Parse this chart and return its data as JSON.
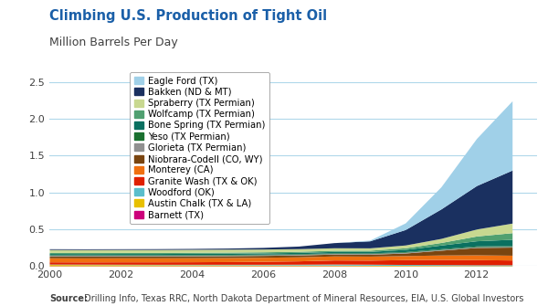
{
  "title": "Climbing U.S. Production of Tight Oil",
  "subtitle": "Million Barrels Per Day",
  "source_bold": "Source:",
  "source_rest": " Drilling Info, Texas RRC, North Dakota Department of Mineral Resources, EIA, U.S. Global Investors",
  "title_color": "#1a5fa8",
  "subtitle_color": "#404040",
  "xlim": [
    2000,
    2013.7
  ],
  "ylim": [
    0,
    2.7
  ],
  "yticks": [
    0.0,
    0.5,
    1.0,
    1.5,
    2.0,
    2.5
  ],
  "xticks": [
    2000,
    2002,
    2004,
    2006,
    2008,
    2010,
    2012
  ],
  "series": [
    {
      "name": "Barnett (TX)",
      "color": "#cc007a"
    },
    {
      "name": "Austin Chalk (TX & LA)",
      "color": "#e8c000"
    },
    {
      "name": "Woodford (OK)",
      "color": "#5abecc"
    },
    {
      "name": "Granite Wash (TX & OK)",
      "color": "#e02000"
    },
    {
      "name": "Monterey (CA)",
      "color": "#f07010"
    },
    {
      "name": "Niobrara-Codell (CO, WY)",
      "color": "#7a4510"
    },
    {
      "name": "Glorieta (TX Permian)",
      "color": "#909090"
    },
    {
      "name": "Yeso (TX Permian)",
      "color": "#1a7030"
    },
    {
      "name": "Bone Spring (TX Permian)",
      "color": "#0a7060"
    },
    {
      "name": "Wolfcamp (TX Permian)",
      "color": "#50a070"
    },
    {
      "name": "Spraberry (TX Permian)",
      "color": "#c8d890"
    },
    {
      "name": "Bakken (ND & MT)",
      "color": "#1a3060"
    },
    {
      "name": "Eagle Ford (TX)",
      "color": "#a0d0e8"
    }
  ],
  "years": [
    2000,
    2001,
    2002,
    2003,
    2004,
    2005,
    2006,
    2007,
    2008,
    2009,
    2010,
    2011,
    2012,
    2013
  ],
  "data": {
    "Barnett (TX)": [
      0.005,
      0.005,
      0.005,
      0.005,
      0.005,
      0.005,
      0.005,
      0.005,
      0.005,
      0.004,
      0.003,
      0.003,
      0.002,
      0.002
    ],
    "Austin Chalk (TX & LA)": [
      0.018,
      0.017,
      0.016,
      0.015,
      0.014,
      0.013,
      0.012,
      0.011,
      0.01,
      0.009,
      0.008,
      0.007,
      0.006,
      0.006
    ],
    "Woodford (OK)": [
      0.006,
      0.006,
      0.006,
      0.006,
      0.007,
      0.008,
      0.009,
      0.011,
      0.014,
      0.014,
      0.013,
      0.012,
      0.011,
      0.011
    ],
    "Granite Wash (TX & OK)": [
      0.03,
      0.03,
      0.032,
      0.033,
      0.034,
      0.036,
      0.04,
      0.045,
      0.055,
      0.055,
      0.065,
      0.07,
      0.07,
      0.065
    ],
    "Monterey (CA)": [
      0.055,
      0.055,
      0.055,
      0.055,
      0.055,
      0.055,
      0.055,
      0.055,
      0.055,
      0.055,
      0.055,
      0.06,
      0.065,
      0.065
    ],
    "Niobrara-Codell (CO, WY)": [
      0.025,
      0.025,
      0.025,
      0.025,
      0.025,
      0.025,
      0.025,
      0.025,
      0.025,
      0.025,
      0.035,
      0.065,
      0.1,
      0.11
    ],
    "Glorieta (TX Permian)": [
      0.01,
      0.01,
      0.01,
      0.01,
      0.01,
      0.01,
      0.01,
      0.01,
      0.01,
      0.01,
      0.01,
      0.01,
      0.01,
      0.01
    ],
    "Yeso (TX Permian)": [
      0.008,
      0.008,
      0.008,
      0.008,
      0.008,
      0.008,
      0.008,
      0.008,
      0.008,
      0.008,
      0.009,
      0.01,
      0.011,
      0.011
    ],
    "Bone Spring (TX Permian)": [
      0.015,
      0.015,
      0.015,
      0.015,
      0.016,
      0.016,
      0.016,
      0.017,
      0.018,
      0.02,
      0.03,
      0.05,
      0.07,
      0.085
    ],
    "Wolfcamp (TX Permian)": [
      0.015,
      0.015,
      0.015,
      0.015,
      0.015,
      0.015,
      0.015,
      0.015,
      0.016,
      0.017,
      0.022,
      0.035,
      0.065,
      0.09
    ],
    "Spraberry (TX Permian)": [
      0.04,
      0.04,
      0.04,
      0.04,
      0.04,
      0.04,
      0.038,
      0.036,
      0.034,
      0.032,
      0.038,
      0.055,
      0.095,
      0.13
    ],
    "Bakken (ND & MT)": [
      0.01,
      0.01,
      0.01,
      0.011,
      0.012,
      0.015,
      0.022,
      0.035,
      0.07,
      0.095,
      0.21,
      0.4,
      0.59,
      0.72
    ],
    "Eagle Ford (TX)": [
      0.0,
      0.0,
      0.0,
      0.0,
      0.0,
      0.0,
      0.0,
      0.0,
      0.0,
      0.01,
      0.09,
      0.3,
      0.64,
      0.94
    ]
  },
  "background_color": "#ffffff",
  "grid_color": "#b0d8ea",
  "legend_fontsize": 7.2,
  "title_fontsize": 10.5,
  "subtitle_fontsize": 9,
  "source_fontsize": 7
}
